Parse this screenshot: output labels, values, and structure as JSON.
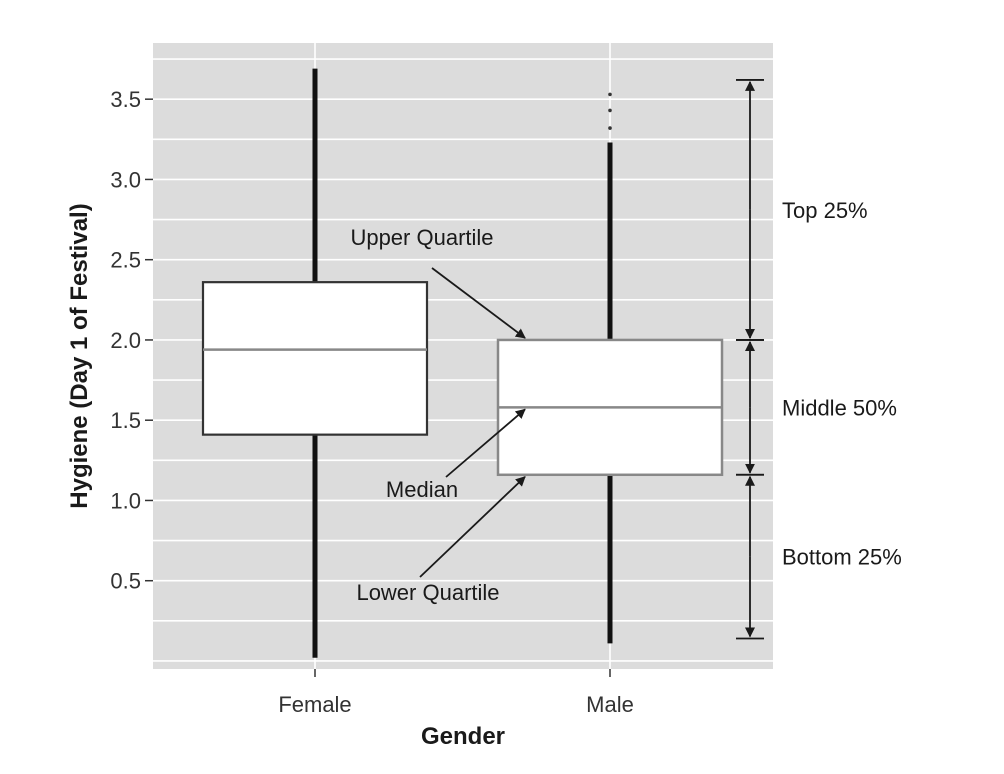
{
  "chart_data": {
    "type": "boxplot",
    "xlabel": "Gender",
    "ylabel": "Hygiene (Day 1 of Festival)",
    "ylim": [
      -0.05,
      3.85
    ],
    "yticks": [
      0.5,
      1.0,
      1.5,
      2.0,
      2.5,
      3.0,
      3.5
    ],
    "ytick_labels": [
      "0.5",
      "1.0",
      "1.5",
      "2.0",
      "2.5",
      "3.0",
      "3.5"
    ],
    "grid": true,
    "categories": [
      "Female",
      "Male"
    ],
    "boxes": [
      {
        "category": "Female",
        "whisker_low": 0.02,
        "q1": 1.41,
        "median": 1.94,
        "q3": 2.36,
        "whisker_high": 3.69,
        "outliers": []
      },
      {
        "category": "Male",
        "whisker_low": 0.11,
        "q1": 1.16,
        "median": 1.58,
        "q3": 2.0,
        "whisker_high": 3.23,
        "outliers": [
          3.32,
          3.43,
          3.53
        ]
      }
    ],
    "annotations": {
      "upper_quartile": "Upper Quartile",
      "median": "Median",
      "lower_quartile": "Lower Quartile"
    },
    "brackets": [
      {
        "label": "Top 25%",
        "from": 2.0,
        "to": 3.62
      },
      {
        "label": "Middle 50%",
        "from": 1.16,
        "to": 2.0
      },
      {
        "label": "Bottom 25%",
        "from": 0.14,
        "to": 1.16
      }
    ]
  }
}
